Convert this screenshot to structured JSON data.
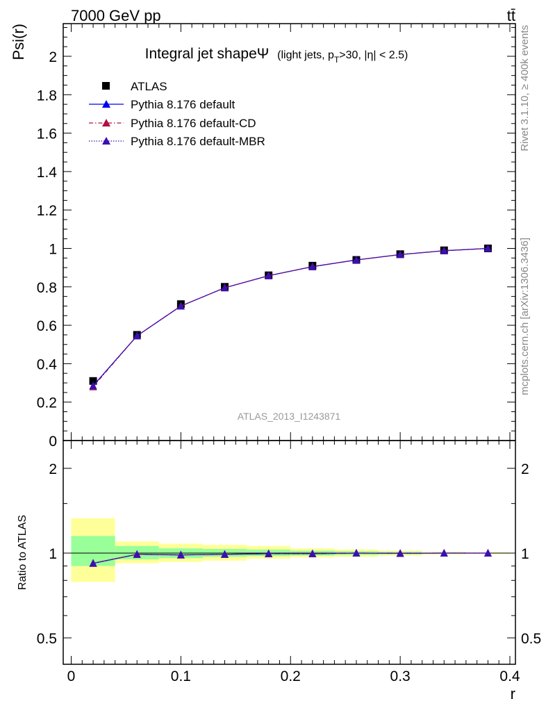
{
  "header": {
    "left": "7000 GeV pp",
    "right": "tt̄"
  },
  "side_labels": {
    "rivet": "Rivet 3.1.10, ≥ 400k events",
    "mcplots": "mcplots.cern.ch [arXiv:1306.3436]"
  },
  "plot_title": {
    "main": "Integral jet shapeΨ",
    "sub_pre": "(light jets, p",
    "sub_subscript": "T",
    "sub_post": ">30, |η| < 2.5)"
  },
  "watermark": "ATLAS_2013_I1243871",
  "legend": {
    "entries": [
      {
        "label": "ATLAS"
      },
      {
        "label": "Pythia 8.176 default"
      },
      {
        "label": "Pythia 8.176 default-CD"
      },
      {
        "label": "Pythia 8.176 default-MBR"
      }
    ]
  },
  "colors": {
    "data": "#000000",
    "default": "#0000ee",
    "cd": "#b01040",
    "mbr": "#3a10b0",
    "band_inner": "#99ff99",
    "band_outer": "#ffff99"
  },
  "chart_data": [
    {
      "type": "line",
      "title": "Integral jet shapeΨ (light jets, pT>30, |η| < 2.5)",
      "xlabel": "r",
      "ylabel": "Psi(r)",
      "xlim": [
        0,
        0.4
      ],
      "ylim": [
        0,
        2.15
      ],
      "x_ticks": [
        0,
        0.1,
        0.2,
        0.3,
        0.4
      ],
      "y_ticks": [
        0,
        0.2,
        0.4,
        0.6,
        0.8,
        1,
        1.2,
        1.4,
        1.6,
        1.8,
        2
      ],
      "y_tick_labels": [
        "0",
        "0.2",
        "0.4",
        "0.6",
        "0.8",
        "1",
        "1.2",
        "1.4",
        "1.6",
        "1.8",
        "2"
      ],
      "x": [
        0.02,
        0.06,
        0.1,
        0.14,
        0.18,
        0.22,
        0.26,
        0.3,
        0.34,
        0.38
      ],
      "series": [
        {
          "name": "ATLAS",
          "style": "markers",
          "values": [
            0.31,
            0.55,
            0.71,
            0.8,
            0.86,
            0.91,
            0.94,
            0.97,
            0.99,
            1.0
          ]
        },
        {
          "name": "Pythia 8.176 default",
          "style": "line",
          "values": [
            0.285,
            0.545,
            0.7,
            0.795,
            0.858,
            0.905,
            0.94,
            0.968,
            0.988,
            1.0
          ]
        },
        {
          "name": "Pythia 8.176 default-CD",
          "style": "dashed",
          "values": [
            0.28,
            0.545,
            0.7,
            0.795,
            0.858,
            0.905,
            0.94,
            0.968,
            0.988,
            1.0
          ]
        },
        {
          "name": "Pythia 8.176 default-MBR",
          "style": "dotted",
          "values": [
            0.285,
            0.545,
            0.7,
            0.795,
            0.858,
            0.905,
            0.94,
            0.968,
            0.988,
            1.0
          ]
        }
      ]
    },
    {
      "type": "line",
      "xlabel": "r",
      "ylabel": "Ratio to ATLAS",
      "xlim": [
        0,
        0.4
      ],
      "ylim": [
        0.5,
        2.0
      ],
      "y_scale": "log",
      "x_ticks": [
        0,
        0.1,
        0.2,
        0.3,
        0.4
      ],
      "x_tick_labels": [
        "0",
        "0.1",
        "0.2",
        "0.3",
        "0.4"
      ],
      "y_ticks": [
        0.5,
        1,
        2
      ],
      "y_tick_labels": [
        "0.5",
        "1",
        "2"
      ],
      "bins": [
        [
          0.0,
          0.04
        ],
        [
          0.04,
          0.08
        ],
        [
          0.08,
          0.12
        ],
        [
          0.12,
          0.16
        ],
        [
          0.16,
          0.2
        ],
        [
          0.2,
          0.24
        ],
        [
          0.24,
          0.28
        ],
        [
          0.28,
          0.32
        ],
        [
          0.32,
          0.36
        ],
        [
          0.36,
          0.4
        ]
      ],
      "band_inner": [
        [
          0.9,
          1.15
        ],
        [
          0.95,
          1.06
        ],
        [
          0.96,
          1.04
        ],
        [
          0.97,
          1.035
        ],
        [
          0.975,
          1.03
        ],
        [
          0.98,
          1.02
        ],
        [
          0.985,
          1.015
        ],
        [
          0.99,
          1.01
        ],
        [
          0.995,
          1.005
        ],
        [
          0.998,
          1.002
        ]
      ],
      "band_outer": [
        [
          0.79,
          1.33
        ],
        [
          0.92,
          1.1
        ],
        [
          0.93,
          1.08
        ],
        [
          0.94,
          1.07
        ],
        [
          0.955,
          1.06
        ],
        [
          0.965,
          1.04
        ],
        [
          0.97,
          1.03
        ],
        [
          0.98,
          1.02
        ],
        [
          0.99,
          1.01
        ],
        [
          0.995,
          1.005
        ]
      ],
      "x": [
        0.02,
        0.06,
        0.1,
        0.14,
        0.18,
        0.22,
        0.26,
        0.3,
        0.34,
        0.38
      ],
      "series": [
        {
          "name": "Pythia 8.176 default",
          "values": [
            0.92,
            0.99,
            0.985,
            0.99,
            0.995,
            0.995,
            1.0,
            0.998,
            1.0,
            1.0
          ]
        },
        {
          "name": "Pythia 8.176 default-CD",
          "values": [
            0.92,
            0.99,
            0.985,
            0.99,
            0.995,
            0.995,
            1.0,
            0.998,
            1.0,
            1.0
          ]
        },
        {
          "name": "Pythia 8.176 default-MBR",
          "values": [
            0.92,
            0.99,
            0.985,
            0.99,
            0.995,
            0.995,
            1.0,
            0.998,
            1.0,
            1.0
          ]
        }
      ]
    }
  ]
}
